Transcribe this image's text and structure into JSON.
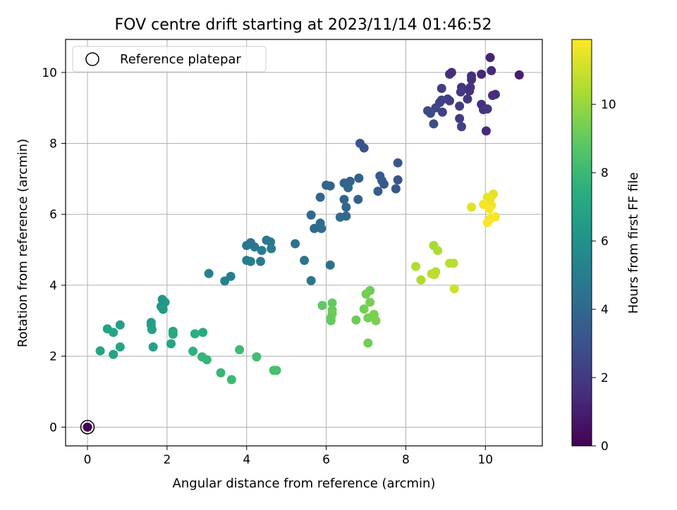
{
  "chart_data": {
    "type": "scatter",
    "title": "FOV centre drift starting at 2023/11/14 01:46:52",
    "xlabel": "Angular distance from reference (arcmin)",
    "ylabel": "Rotation from reference (arcmin)",
    "xlim": [
      -0.55,
      11.43
    ],
    "ylim": [
      -0.53,
      10.93
    ],
    "xticks": [
      0,
      2,
      4,
      6,
      8,
      10
    ],
    "yticks": [
      0,
      2,
      4,
      6,
      8,
      10
    ],
    "grid": true,
    "legend": {
      "position": "top-left",
      "entries": [
        "Reference platepar"
      ]
    },
    "colorbar": {
      "label": "Hours from first FF file",
      "range": [
        0,
        11.9
      ],
      "ticks": [
        0,
        2,
        4,
        6,
        8,
        10
      ],
      "colormap": "viridis"
    },
    "reference_point": {
      "x": 0,
      "y": 0,
      "label": "Reference platepar"
    },
    "points": [
      {
        "x": 0.0,
        "y": 0.0,
        "c": 0.0
      },
      {
        "x": 9.9,
        "y": 9.95,
        "c": 1.3
      },
      {
        "x": 10.12,
        "y": 10.42,
        "c": 1.2
      },
      {
        "x": 10.15,
        "y": 10.05,
        "c": 1.4
      },
      {
        "x": 10.85,
        "y": 9.93,
        "c": 1.0
      },
      {
        "x": 9.65,
        "y": 9.9,
        "c": 1.5
      },
      {
        "x": 9.65,
        "y": 9.8,
        "c": 1.6
      },
      {
        "x": 9.1,
        "y": 9.95,
        "c": 1.7
      },
      {
        "x": 9.15,
        "y": 10.0,
        "c": 1.5
      },
      {
        "x": 9.62,
        "y": 9.58,
        "c": 1.8
      },
      {
        "x": 9.6,
        "y": 9.48,
        "c": 1.7
      },
      {
        "x": 9.4,
        "y": 9.58,
        "c": 1.9
      },
      {
        "x": 9.38,
        "y": 9.45,
        "c": 2.0
      },
      {
        "x": 8.9,
        "y": 9.55,
        "c": 2.1
      },
      {
        "x": 9.05,
        "y": 9.25,
        "c": 2.0
      },
      {
        "x": 9.1,
        "y": 9.2,
        "c": 2.2
      },
      {
        "x": 8.9,
        "y": 9.22,
        "c": 2.4
      },
      {
        "x": 8.85,
        "y": 9.15,
        "c": 2.3
      },
      {
        "x": 8.75,
        "y": 9.0,
        "c": 2.5
      },
      {
        "x": 8.55,
        "y": 8.92,
        "c": 2.6
      },
      {
        "x": 8.62,
        "y": 8.85,
        "c": 2.7
      },
      {
        "x": 8.7,
        "y": 8.55,
        "c": 2.8
      },
      {
        "x": 8.92,
        "y": 8.88,
        "c": 2.2
      },
      {
        "x": 9.35,
        "y": 9.05,
        "c": 2.1
      },
      {
        "x": 9.55,
        "y": 9.25,
        "c": 1.9
      },
      {
        "x": 9.35,
        "y": 8.7,
        "c": 2.0
      },
      {
        "x": 9.4,
        "y": 8.47,
        "c": 2.3
      },
      {
        "x": 9.9,
        "y": 9.1,
        "c": 1.6
      },
      {
        "x": 9.95,
        "y": 8.95,
        "c": 1.8
      },
      {
        "x": 10.05,
        "y": 8.97,
        "c": 1.9
      },
      {
        "x": 10.18,
        "y": 9.35,
        "c": 1.5
      },
      {
        "x": 10.25,
        "y": 9.38,
        "c": 1.6
      },
      {
        "x": 10.02,
        "y": 8.35,
        "c": 1.4
      },
      {
        "x": 6.85,
        "y": 8.0,
        "c": 3.1
      },
      {
        "x": 6.95,
        "y": 7.87,
        "c": 3.0
      },
      {
        "x": 7.8,
        "y": 7.45,
        "c": 3.2
      },
      {
        "x": 7.35,
        "y": 7.08,
        "c": 3.3
      },
      {
        "x": 7.4,
        "y": 6.95,
        "c": 3.4
      },
      {
        "x": 7.45,
        "y": 6.85,
        "c": 3.3
      },
      {
        "x": 7.8,
        "y": 6.97,
        "c": 3.1
      },
      {
        "x": 7.75,
        "y": 6.72,
        "c": 3.2
      },
      {
        "x": 7.3,
        "y": 6.65,
        "c": 3.5
      },
      {
        "x": 6.82,
        "y": 7.02,
        "c": 3.6
      },
      {
        "x": 6.6,
        "y": 6.93,
        "c": 3.7
      },
      {
        "x": 6.45,
        "y": 6.88,
        "c": 3.8
      },
      {
        "x": 6.55,
        "y": 6.75,
        "c": 3.9
      },
      {
        "x": 6.8,
        "y": 6.42,
        "c": 3.6
      },
      {
        "x": 6.45,
        "y": 6.42,
        "c": 3.8
      },
      {
        "x": 6.5,
        "y": 6.2,
        "c": 3.9
      },
      {
        "x": 6.5,
        "y": 5.95,
        "c": 4.0
      },
      {
        "x": 6.35,
        "y": 5.92,
        "c": 4.1
      },
      {
        "x": 6.0,
        "y": 6.82,
        "c": 3.7
      },
      {
        "x": 6.1,
        "y": 6.8,
        "c": 3.8
      },
      {
        "x": 5.85,
        "y": 6.48,
        "c": 3.9
      },
      {
        "x": 5.62,
        "y": 5.98,
        "c": 4.0
      },
      {
        "x": 5.85,
        "y": 5.75,
        "c": 4.2
      },
      {
        "x": 5.88,
        "y": 5.6,
        "c": 4.3
      },
      {
        "x": 5.7,
        "y": 5.6,
        "c": 4.1
      },
      {
        "x": 5.22,
        "y": 5.17,
        "c": 4.4
      },
      {
        "x": 5.45,
        "y": 4.7,
        "c": 4.5
      },
      {
        "x": 5.62,
        "y": 4.13,
        "c": 4.6
      },
      {
        "x": 6.1,
        "y": 4.57,
        "c": 4.4
      },
      {
        "x": 4.5,
        "y": 5.27,
        "c": 4.7
      },
      {
        "x": 4.6,
        "y": 5.22,
        "c": 4.8
      },
      {
        "x": 4.62,
        "y": 5.03,
        "c": 4.9
      },
      {
        "x": 4.2,
        "y": 5.08,
        "c": 4.8
      },
      {
        "x": 4.1,
        "y": 5.2,
        "c": 4.6
      },
      {
        "x": 4.0,
        "y": 5.12,
        "c": 4.7
      },
      {
        "x": 4.38,
        "y": 4.98,
        "c": 4.9
      },
      {
        "x": 4.0,
        "y": 4.7,
        "c": 5.0
      },
      {
        "x": 4.1,
        "y": 4.67,
        "c": 5.1
      },
      {
        "x": 4.35,
        "y": 4.67,
        "c": 4.9
      },
      {
        "x": 3.05,
        "y": 4.33,
        "c": 5.2
      },
      {
        "x": 3.6,
        "y": 4.25,
        "c": 5.1
      },
      {
        "x": 3.45,
        "y": 4.12,
        "c": 5.3
      },
      {
        "x": 1.88,
        "y": 3.6,
        "c": 6.2
      },
      {
        "x": 1.95,
        "y": 3.52,
        "c": 6.3
      },
      {
        "x": 1.85,
        "y": 3.4,
        "c": 6.1
      },
      {
        "x": 1.9,
        "y": 3.32,
        "c": 6.4
      },
      {
        "x": 1.6,
        "y": 2.95,
        "c": 6.5
      },
      {
        "x": 1.6,
        "y": 2.88,
        "c": 6.6
      },
      {
        "x": 1.62,
        "y": 2.75,
        "c": 6.7
      },
      {
        "x": 2.15,
        "y": 2.7,
        "c": 7.0
      },
      {
        "x": 2.15,
        "y": 2.62,
        "c": 7.2
      },
      {
        "x": 0.82,
        "y": 2.88,
        "c": 6.6
      },
      {
        "x": 0.5,
        "y": 2.77,
        "c": 6.8
      },
      {
        "x": 0.65,
        "y": 2.67,
        "c": 6.9
      },
      {
        "x": 0.82,
        "y": 2.26,
        "c": 7.0
      },
      {
        "x": 0.32,
        "y": 2.15,
        "c": 6.9
      },
      {
        "x": 0.65,
        "y": 2.05,
        "c": 6.8
      },
      {
        "x": 1.65,
        "y": 2.26,
        "c": 6.7
      },
      {
        "x": 2.1,
        "y": 2.35,
        "c": 6.9
      },
      {
        "x": 2.7,
        "y": 2.63,
        "c": 7.5
      },
      {
        "x": 2.9,
        "y": 2.67,
        "c": 7.3
      },
      {
        "x": 2.65,
        "y": 2.14,
        "c": 7.6
      },
      {
        "x": 2.88,
        "y": 1.98,
        "c": 7.7
      },
      {
        "x": 3.0,
        "y": 1.9,
        "c": 7.8
      },
      {
        "x": 3.35,
        "y": 1.53,
        "c": 7.9
      },
      {
        "x": 3.62,
        "y": 1.34,
        "c": 8.0
      },
      {
        "x": 3.82,
        "y": 2.18,
        "c": 8.1
      },
      {
        "x": 4.25,
        "y": 1.98,
        "c": 8.2
      },
      {
        "x": 4.68,
        "y": 1.6,
        "c": 8.3
      },
      {
        "x": 4.75,
        "y": 1.6,
        "c": 8.4
      },
      {
        "x": 6.15,
        "y": 3.5,
        "c": 9.0
      },
      {
        "x": 5.9,
        "y": 3.43,
        "c": 8.9
      },
      {
        "x": 6.15,
        "y": 3.3,
        "c": 9.1
      },
      {
        "x": 6.15,
        "y": 3.2,
        "c": 9.2
      },
      {
        "x": 6.12,
        "y": 3.08,
        "c": 9.1
      },
      {
        "x": 6.12,
        "y": 3.0,
        "c": 9.0
      },
      {
        "x": 7.1,
        "y": 3.85,
        "c": 9.2
      },
      {
        "x": 7.0,
        "y": 3.75,
        "c": 9.3
      },
      {
        "x": 7.1,
        "y": 3.52,
        "c": 9.4
      },
      {
        "x": 6.95,
        "y": 3.33,
        "c": 9.3
      },
      {
        "x": 7.2,
        "y": 3.18,
        "c": 9.5
      },
      {
        "x": 7.05,
        "y": 3.08,
        "c": 9.4
      },
      {
        "x": 6.75,
        "y": 3.02,
        "c": 9.2
      },
      {
        "x": 7.25,
        "y": 3.0,
        "c": 9.5
      },
      {
        "x": 7.05,
        "y": 2.37,
        "c": 9.3
      },
      {
        "x": 8.7,
        "y": 5.12,
        "c": 10.3
      },
      {
        "x": 8.8,
        "y": 4.98,
        "c": 10.4
      },
      {
        "x": 8.25,
        "y": 4.53,
        "c": 10.5
      },
      {
        "x": 9.1,
        "y": 4.62,
        "c": 10.7
      },
      {
        "x": 9.2,
        "y": 4.62,
        "c": 10.6
      },
      {
        "x": 8.75,
        "y": 4.38,
        "c": 10.5
      },
      {
        "x": 8.65,
        "y": 4.32,
        "c": 10.6
      },
      {
        "x": 8.72,
        "y": 4.3,
        "c": 10.7
      },
      {
        "x": 8.38,
        "y": 4.15,
        "c": 10.4
      },
      {
        "x": 9.22,
        "y": 3.9,
        "c": 11.0
      },
      {
        "x": 10.2,
        "y": 6.57,
        "c": 11.4
      },
      {
        "x": 10.05,
        "y": 6.48,
        "c": 11.5
      },
      {
        "x": 10.12,
        "y": 6.43,
        "c": 11.6
      },
      {
        "x": 10.08,
        "y": 6.37,
        "c": 11.5
      },
      {
        "x": 9.95,
        "y": 6.28,
        "c": 11.7
      },
      {
        "x": 10.15,
        "y": 6.25,
        "c": 11.6
      },
      {
        "x": 10.1,
        "y": 6.15,
        "c": 11.8
      },
      {
        "x": 9.65,
        "y": 6.2,
        "c": 11.3
      },
      {
        "x": 10.25,
        "y": 5.93,
        "c": 11.7
      },
      {
        "x": 10.15,
        "y": 5.9,
        "c": 11.8
      },
      {
        "x": 10.05,
        "y": 5.77,
        "c": 11.9
      },
      {
        "x": 10.1,
        "y": 5.85,
        "c": 11.8
      }
    ]
  }
}
